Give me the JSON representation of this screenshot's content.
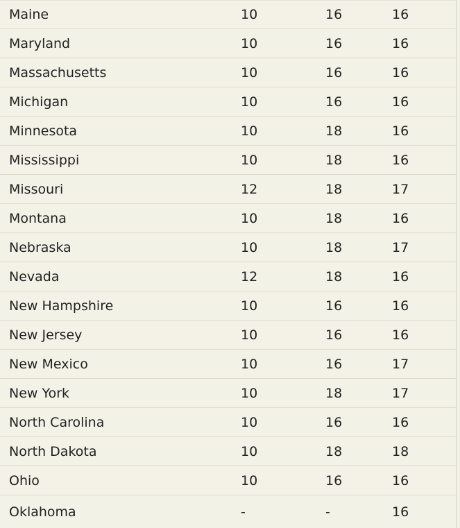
{
  "table": {
    "rows": [
      [
        "Maine",
        "10",
        "16",
        "16"
      ],
      [
        "Maryland",
        "10",
        "16",
        "16"
      ],
      [
        "Massachusetts",
        "10",
        "16",
        "16"
      ],
      [
        "Michigan",
        "10",
        "16",
        "16"
      ],
      [
        "Minnesota",
        "10",
        "18",
        "16"
      ],
      [
        "Mississippi",
        "10",
        "18",
        "16"
      ],
      [
        "Missouri",
        "12",
        "18",
        "17"
      ],
      [
        "Montana",
        "10",
        "18",
        "16"
      ],
      [
        "Nebraska",
        "10",
        "18",
        "17"
      ],
      [
        "Nevada",
        "12",
        "18",
        "16"
      ],
      [
        "New Hampshire",
        "10",
        "16",
        "16"
      ],
      [
        "New Jersey",
        "10",
        "16",
        "16"
      ],
      [
        "New Mexico",
        "10",
        "16",
        "17"
      ],
      [
        "New York",
        "10",
        "18",
        "17"
      ],
      [
        "North Carolina",
        "10",
        "16",
        "16"
      ],
      [
        "North Dakota",
        "10",
        "18",
        "18"
      ],
      [
        "Ohio",
        "10",
        "16",
        "16"
      ],
      [
        "Oklahoma",
        "-",
        "-",
        "16"
      ]
    ]
  },
  "colors": {
    "background": "#f3f2e6",
    "divider": "#dcdbcb",
    "text": "#222222"
  }
}
